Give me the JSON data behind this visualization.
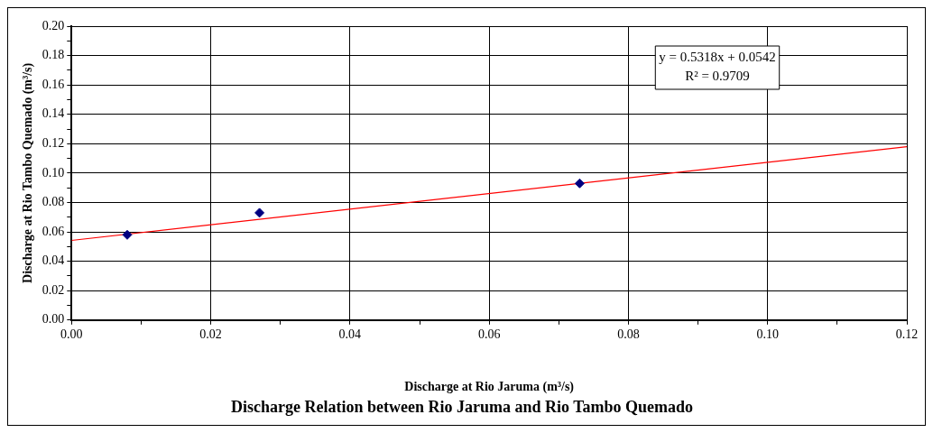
{
  "chart_data": {
    "type": "scatter",
    "title": "Discharge Relation between Rio Jaruma and Rio Tambo Quemado",
    "xlabel": "Discharge at Rio Jaruma (m³/s)",
    "ylabel": "Discharge at Rio Tambo Quemado (m³/s)",
    "annotations": [
      "y = 0.5318x + 0.0542",
      "R² = 0.9709"
    ],
    "series": [
      {
        "type": "scatter",
        "color": "#000080",
        "marker": "diamond",
        "x": [
          0.008,
          0.027,
          0.073
        ],
        "values": [
          0.058,
          0.073,
          0.093
        ]
      },
      {
        "type": "line",
        "color": "#ff0000",
        "marker": "none",
        "x": [
          0,
          0.12
        ],
        "values": [
          0.0542,
          0.118
        ]
      }
    ],
    "xlim": [
      0,
      0.12
    ],
    "ylim": [
      0,
      0.2
    ],
    "xticks": [
      {
        "value": 0,
        "label": "0.00"
      },
      {
        "value": 0.01,
        "label": null
      },
      {
        "value": 0.02,
        "label": "0.02"
      },
      {
        "value": 0.03,
        "label": null
      },
      {
        "value": 0.04,
        "label": "0.04"
      },
      {
        "value": 0.05,
        "label": null
      },
      {
        "value": 0.06,
        "label": "0.06"
      },
      {
        "value": 0.07,
        "label": null
      },
      {
        "value": 0.08,
        "label": "0.08"
      },
      {
        "value": 0.09,
        "label": null
      },
      {
        "value": 0.1,
        "label": "0.10"
      },
      {
        "value": 0.11,
        "label": null
      },
      {
        "value": 0.12,
        "label": "0.12"
      }
    ],
    "yticks": [
      {
        "value": 0,
        "label": "0.00"
      },
      {
        "value": 0.01,
        "label": null
      },
      {
        "value": 0.02,
        "label": "0.02"
      },
      {
        "value": 0.03,
        "label": null
      },
      {
        "value": 0.04,
        "label": "0.04"
      },
      {
        "value": 0.05,
        "label": null
      },
      {
        "value": 0.06,
        "label": "0.06"
      },
      {
        "value": 0.07,
        "label": null
      },
      {
        "value": 0.08,
        "label": "0.08"
      },
      {
        "value": 0.09,
        "label": null
      },
      {
        "value": 0.1,
        "label": "0.10"
      },
      {
        "value": 0.11,
        "label": null
      },
      {
        "value": 0.12,
        "label": "0.12"
      },
      {
        "value": 0.13,
        "label": null
      },
      {
        "value": 0.14,
        "label": "0.14"
      },
      {
        "value": 0.15,
        "label": null
      },
      {
        "value": 0.16,
        "label": "0.16"
      },
      {
        "value": 0.17,
        "label": null
      },
      {
        "value": 0.18,
        "label": "0.18"
      },
      {
        "value": 0.19,
        "label": null
      },
      {
        "value": 0.2,
        "label": "0.20"
      }
    ],
    "grid": true,
    "legend": false
  }
}
